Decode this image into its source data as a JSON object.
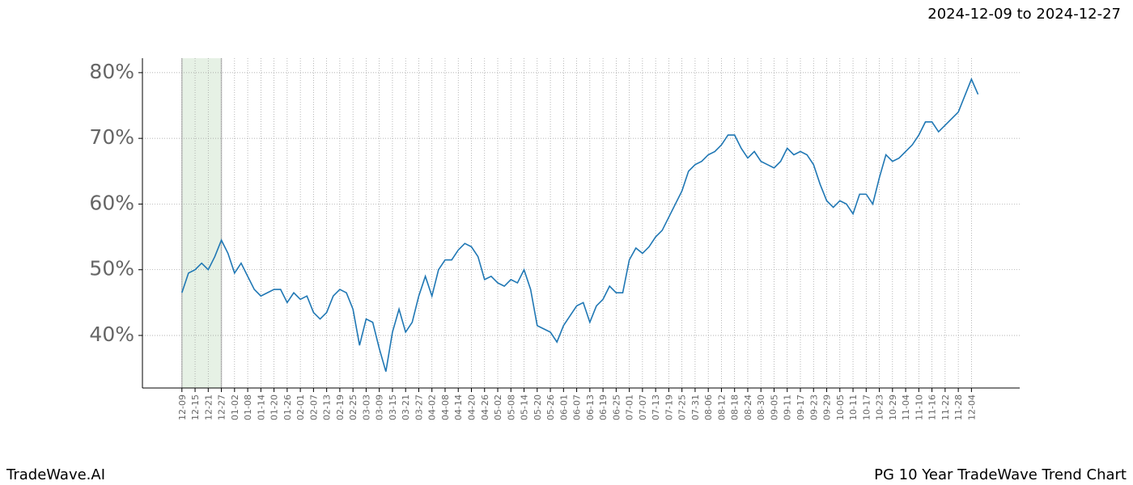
{
  "chart_data": {
    "type": "line",
    "title": "2024-12-09 to 2024-12-27",
    "footer_left": "TradeWave.AI",
    "footer_right": "PG 10 Year TradeWave Trend Chart",
    "highlight": [
      0,
      18
    ],
    "highlight_color": "#d5e8d4",
    "grid": true,
    "xlim": [
      -18,
      382
    ],
    "ylim": [
      32,
      82.2
    ],
    "yticks": [
      {
        "value": 40,
        "label": "40%"
      },
      {
        "value": 50,
        "label": "50%"
      },
      {
        "value": 60,
        "label": "60%"
      },
      {
        "value": 70,
        "label": "70%"
      },
      {
        "value": 80,
        "label": "80%"
      }
    ],
    "xticks": [
      {
        "value": 0,
        "label": "12-09"
      },
      {
        "value": 6,
        "label": "12-15"
      },
      {
        "value": 12,
        "label": "12-21"
      },
      {
        "value": 18,
        "label": "12-27"
      },
      {
        "value": 24,
        "label": "01-02"
      },
      {
        "value": 30,
        "label": "01-08"
      },
      {
        "value": 36,
        "label": "01-14"
      },
      {
        "value": 42,
        "label": "01-20"
      },
      {
        "value": 48,
        "label": "01-26"
      },
      {
        "value": 54,
        "label": "02-01"
      },
      {
        "value": 60,
        "label": "02-07"
      },
      {
        "value": 66,
        "label": "02-13"
      },
      {
        "value": 72,
        "label": "02-19"
      },
      {
        "value": 78,
        "label": "02-25"
      },
      {
        "value": 84,
        "label": "03-03"
      },
      {
        "value": 90,
        "label": "03-09"
      },
      {
        "value": 96,
        "label": "03-15"
      },
      {
        "value": 102,
        "label": "03-21"
      },
      {
        "value": 108,
        "label": "03-27"
      },
      {
        "value": 114,
        "label": "04-02"
      },
      {
        "value": 120,
        "label": "04-08"
      },
      {
        "value": 126,
        "label": "04-14"
      },
      {
        "value": 132,
        "label": "04-20"
      },
      {
        "value": 138,
        "label": "04-26"
      },
      {
        "value": 144,
        "label": "05-02"
      },
      {
        "value": 150,
        "label": "05-08"
      },
      {
        "value": 156,
        "label": "05-14"
      },
      {
        "value": 162,
        "label": "05-20"
      },
      {
        "value": 168,
        "label": "05-26"
      },
      {
        "value": 174,
        "label": "06-01"
      },
      {
        "value": 180,
        "label": "06-07"
      },
      {
        "value": 186,
        "label": "06-13"
      },
      {
        "value": 192,
        "label": "06-19"
      },
      {
        "value": 198,
        "label": "06-25"
      },
      {
        "value": 204,
        "label": "07-01"
      },
      {
        "value": 210,
        "label": "07-07"
      },
      {
        "value": 216,
        "label": "07-13"
      },
      {
        "value": 222,
        "label": "07-19"
      },
      {
        "value": 228,
        "label": "07-25"
      },
      {
        "value": 234,
        "label": "07-31"
      },
      {
        "value": 240,
        "label": "08-06"
      },
      {
        "value": 246,
        "label": "08-12"
      },
      {
        "value": 252,
        "label": "08-18"
      },
      {
        "value": 258,
        "label": "08-24"
      },
      {
        "value": 264,
        "label": "08-30"
      },
      {
        "value": 270,
        "label": "09-05"
      },
      {
        "value": 276,
        "label": "09-11"
      },
      {
        "value": 282,
        "label": "09-17"
      },
      {
        "value": 288,
        "label": "09-23"
      },
      {
        "value": 294,
        "label": "09-29"
      },
      {
        "value": 300,
        "label": "10-05"
      },
      {
        "value": 306,
        "label": "10-11"
      },
      {
        "value": 312,
        "label": "10-17"
      },
      {
        "value": 318,
        "label": "10-23"
      },
      {
        "value": 324,
        "label": "10-29"
      },
      {
        "value": 330,
        "label": "11-04"
      },
      {
        "value": 336,
        "label": "11-10"
      },
      {
        "value": 342,
        "label": "11-16"
      },
      {
        "value": 348,
        "label": "11-22"
      },
      {
        "value": 354,
        "label": "11-28"
      },
      {
        "value": 360,
        "label": "12-04"
      }
    ],
    "x": [
      0,
      3,
      6,
      9,
      12,
      15,
      18,
      21,
      24,
      27,
      30,
      33,
      36,
      39,
      42,
      45,
      48,
      51,
      54,
      57,
      60,
      63,
      66,
      69,
      72,
      75,
      78,
      81,
      84,
      87,
      90,
      93,
      96,
      99,
      102,
      105,
      108,
      111,
      114,
      117,
      120,
      123,
      126,
      129,
      132,
      135,
      138,
      141,
      144,
      147,
      150,
      153,
      156,
      159,
      162,
      165,
      168,
      171,
      174,
      177,
      180,
      183,
      186,
      189,
      192,
      195,
      198,
      201,
      204,
      207,
      210,
      213,
      216,
      219,
      222,
      225,
      228,
      231,
      234,
      237,
      240,
      243,
      246,
      249,
      252,
      255,
      258,
      261,
      264,
      267,
      270,
      273,
      276,
      279,
      282,
      285,
      288,
      291,
      294,
      297,
      300,
      303,
      306,
      309,
      312,
      315,
      318,
      321,
      324,
      327,
      330,
      333,
      336,
      339,
      342,
      345,
      348,
      351,
      354,
      357,
      360,
      363
    ],
    "series": [
      {
        "color": "#1f77b4",
        "values": [
          46.5,
          49.5,
          50,
          51,
          50,
          52,
          54.5,
          52.5,
          49.5,
          51,
          49,
          47,
          46,
          46.5,
          47,
          47,
          45,
          46.5,
          45.5,
          46,
          43.5,
          42.5,
          43.5,
          46,
          47,
          46.5,
          44,
          38.5,
          42.5,
          42,
          38,
          34.5,
          40.5,
          44,
          40.5,
          42,
          46,
          49,
          46,
          50,
          51.5,
          51.5,
          53,
          54,
          53.5,
          52,
          48.5,
          49,
          48,
          47.5,
          48.5,
          48,
          50,
          47,
          41.5,
          41,
          40.5,
          39,
          41.5,
          43,
          44.5,
          45,
          42,
          44.5,
          45.5,
          47.5,
          46.5,
          46.5,
          51.5,
          53.3,
          52.5,
          53.5,
          55,
          56,
          58,
          60,
          62,
          65,
          66,
          66.5,
          67.5,
          68,
          69,
          70.5,
          70.5,
          68.5,
          67,
          68,
          66.5,
          66,
          65.5,
          66.5,
          68.5,
          67.5,
          68,
          67.5,
          66,
          63,
          60.5,
          59.5,
          60.5,
          60,
          58.5,
          61.5,
          61.5,
          60,
          64,
          67.5,
          66.5,
          67,
          68,
          69,
          70.5,
          72.5,
          72.5,
          71,
          72,
          73,
          74,
          76.5,
          79,
          76.7
        ]
      }
    ]
  }
}
